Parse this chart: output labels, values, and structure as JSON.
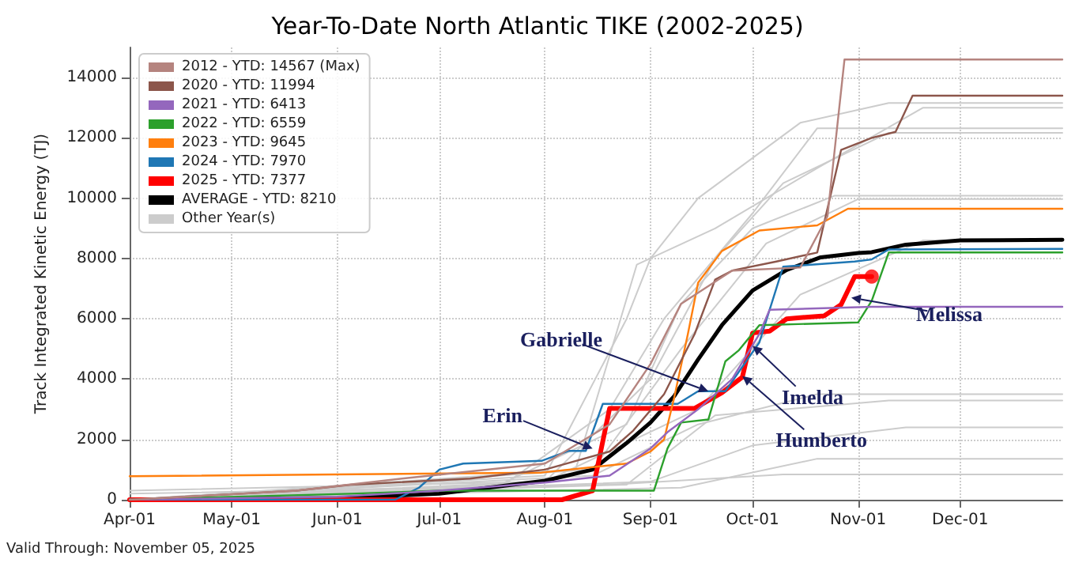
{
  "chart_data": {
    "type": "line",
    "title": "Year-To-Date North Atlantic TIKE (2002-2025)",
    "ylabel": "Track Integrated Kinetic Energy (TJ)",
    "xlim": [
      "--04-01",
      "--12-31"
    ],
    "xticks": [
      {
        "value": "--04-01",
        "label": "Apr-01"
      },
      {
        "value": "--05-01",
        "label": "May-01"
      },
      {
        "value": "--06-01",
        "label": "Jun-01"
      },
      {
        "value": "--07-01",
        "label": "Jul-01"
      },
      {
        "value": "--08-01",
        "label": "Aug-01"
      },
      {
        "value": "--09-01",
        "label": "Sep-01"
      },
      {
        "value": "--10-01",
        "label": "Oct-01"
      },
      {
        "value": "--11-01",
        "label": "Nov-01"
      },
      {
        "value": "--12-01",
        "label": "Dec-01"
      }
    ],
    "ylim": [
      0,
      15000
    ],
    "yticks": [
      0,
      2000,
      4000,
      6000,
      8000,
      10000,
      12000,
      14000
    ],
    "grid": true,
    "legend": "top left",
    "marker": "none",
    "line_style": "solid",
    "annotations": [
      {
        "text": "Erin",
        "x": "--08-15",
        "y": 1700
      },
      {
        "text": "Gabrielle",
        "x": "--09-18",
        "y": 3600
      },
      {
        "text": "Imelda",
        "x": "--10-01",
        "y": 5100
      },
      {
        "text": "Humberto",
        "x": "--09-28",
        "y": 4100
      },
      {
        "text": "Melissa",
        "x": "--10-30",
        "y": 6700
      },
      "Valid Through: November 05, 2025"
    ],
    "series": [
      {
        "name": "2012 - YTD: 14567 (Max)",
        "color": "#b5847f",
        "x": [
          "--04-01",
          "--05-20",
          "--06-20",
          "--08-01",
          "--08-20",
          "--09-01",
          "--09-10",
          "--09-25",
          "--10-15",
          "--10-23",
          "--10-28",
          "--12-31"
        ],
        "values": [
          0,
          300,
          700,
          1200,
          2500,
          4500,
          6500,
          7600,
          7700,
          9400,
          14600,
          14600
        ]
      },
      {
        "name": "2020 - YTD: 11994",
        "color": "#8c564b",
        "x": [
          "--04-01",
          "--05-20",
          "--06-05",
          "--07-10",
          "--08-01",
          "--08-20",
          "--08-27",
          "--09-05",
          "--09-14",
          "--09-20",
          "--09-25",
          "--10-08",
          "--10-20",
          "--10-27",
          "--11-05",
          "--11-12",
          "--11-17",
          "--12-31"
        ],
        "values": [
          0,
          300,
          500,
          700,
          1000,
          1600,
          2300,
          3500,
          5500,
          7300,
          7600,
          7900,
          8200,
          11600,
          12000,
          12200,
          13400,
          13400
        ]
      },
      {
        "name": "2021 - YTD: 6413",
        "color": "#9467bd",
        "x": [
          "--04-01",
          "--06-01",
          "--07-01",
          "--08-01",
          "--08-20",
          "--09-01",
          "--09-06",
          "--09-15",
          "--09-25",
          "--10-03",
          "--10-06",
          "--11-05",
          "--12-31"
        ],
        "values": [
          0,
          100,
          300,
          570,
          800,
          1700,
          2240,
          3000,
          4000,
          5500,
          6300,
          6400,
          6400
        ]
      },
      {
        "name": "2022 - YTD: 6559",
        "color": "#2ca02c",
        "x": [
          "--04-01",
          "--06-05",
          "--07-01",
          "--09-02",
          "--09-06",
          "--09-10",
          "--09-18",
          "--09-23",
          "--09-27",
          "--10-03",
          "--11-01",
          "--11-05",
          "--11-10",
          "--12-31"
        ],
        "values": [
          0,
          200,
          300,
          300,
          1700,
          2560,
          2660,
          4590,
          4960,
          5790,
          5880,
          6600,
          8200,
          8200
        ]
      },
      {
        "name": "2023 - YTD: 9645",
        "color": "#ff7f0e",
        "x": [
          "--04-01",
          "--07-31",
          "--08-25",
          "--09-01",
          "--09-05",
          "--09-08",
          "--09-12",
          "--09-15",
          "--09-22",
          "--10-03",
          "--10-20",
          "--10-29",
          "--12-31"
        ],
        "values": [
          780,
          900,
          1200,
          1600,
          2000,
          3400,
          5500,
          7200,
          8250,
          8930,
          9100,
          9650,
          9650
        ]
      },
      {
        "name": "2024 - YTD: 7970",
        "color": "#1f77b4",
        "x": [
          "--04-01",
          "--06-18",
          "--06-25",
          "--07-01",
          "--07-08",
          "--07-31",
          "--08-08",
          "--08-13",
          "--08-18",
          "--09-09",
          "--09-15",
          "--09-23",
          "--10-03",
          "--10-10",
          "--10-31",
          "--11-05",
          "--11-10",
          "--12-31"
        ],
        "values": [
          0,
          0,
          400,
          1000,
          1200,
          1290,
          1620,
          1620,
          3180,
          3180,
          3600,
          3600,
          5220,
          7730,
          7900,
          7970,
          8300,
          8320
        ]
      },
      {
        "name": "2025 - YTD: 7377",
        "color": "#ff0000",
        "x": [
          "--04-01",
          "--08-06",
          "--08-15",
          "--08-20",
          "--09-14",
          "--09-22",
          "--09-28",
          "--10-01",
          "--10-06",
          "--10-11",
          "--10-22",
          "--10-27",
          "--10-31",
          "--11-05"
        ],
        "values": [
          0,
          0,
          300,
          3030,
          3030,
          3550,
          4070,
          5530,
          5590,
          6000,
          6100,
          6470,
          7400,
          7400
        ]
      },
      {
        "name": "AVERAGE - YTD: 8210",
        "color": "#000000",
        "x": [
          "--04-01",
          "--06-01",
          "--07-01",
          "--08-01",
          "--08-15",
          "--08-25",
          "--09-01",
          "--09-08",
          "--09-15",
          "--09-22",
          "--10-01",
          "--10-11",
          "--10-21",
          "--11-01",
          "--11-05",
          "--11-15",
          "--12-01",
          "--12-31"
        ],
        "values": [
          0,
          50,
          200,
          630,
          1000,
          1880,
          2560,
          3440,
          4650,
          5790,
          6940,
          7620,
          8040,
          8180,
          8210,
          8460,
          8600,
          8620
        ]
      },
      {
        "name": "Other Year(s)",
        "color": "#cccccc",
        "x": [
          "--04-01",
          "--08-01",
          "--08-25",
          "--09-01",
          "--09-15",
          "--10-15",
          "--11-10",
          "--12-31"
        ],
        "values": [
          0,
          800,
          6000,
          8000,
          10000,
          12500,
          13160,
          13160
        ]
      },
      {
        "color": "#cccccc",
        "x": [
          "--04-01",
          "--08-10",
          "--08-28",
          "--09-20",
          "--10-20",
          "--11-20",
          "--12-31"
        ],
        "values": [
          0,
          1000,
          7800,
          9000,
          11000,
          13000,
          13000
        ]
      },
      {
        "color": "#cccccc",
        "x": [
          "--04-01",
          "--07-20",
          "--08-20",
          "--09-05",
          "--10-01",
          "--10-20",
          "--12-31"
        ],
        "values": [
          0,
          500,
          3000,
          6000,
          9500,
          12320,
          12320
        ]
      },
      {
        "color": "#cccccc",
        "x": [
          "--04-01",
          "--08-01",
          "--09-01",
          "--09-20",
          "--10-10",
          "--11-10",
          "--12-31"
        ],
        "values": [
          0,
          600,
          4000,
          8000,
          10500,
          12170,
          12170
        ]
      },
      {
        "color": "#cccccc",
        "x": [
          "--04-01",
          "--07-15",
          "--08-25",
          "--09-10",
          "--10-01",
          "--10-25",
          "--12-31"
        ],
        "values": [
          0,
          300,
          2500,
          6500,
          9000,
          10080,
          10080
        ]
      },
      {
        "color": "#cccccc",
        "x": [
          "--04-01",
          "--08-15",
          "--09-10",
          "--10-05",
          "--11-01",
          "--12-31"
        ],
        "values": [
          0,
          1000,
          5000,
          8500,
          9970,
          9970
        ]
      },
      {
        "color": "#cccccc",
        "x": [
          "--04-01",
          "--08-01",
          "--09-15",
          "--10-15",
          "--11-20",
          "--12-31"
        ],
        "values": [
          300,
          600,
          3000,
          6800,
          8600,
          8600
        ]
      },
      {
        "color": "#cccccc",
        "x": [
          "--04-01",
          "--08-15",
          "--09-15",
          "--10-20",
          "--12-31"
        ],
        "values": [
          0,
          800,
          2500,
          3500,
          3500
        ]
      },
      {
        "color": "#cccccc",
        "x": [
          "--04-01",
          "--08-25",
          "--09-20",
          "--11-10",
          "--12-31"
        ],
        "values": [
          0,
          500,
          2800,
          3290,
          3290
        ]
      },
      {
        "color": "#cccccc",
        "x": [
          "--04-01",
          "--09-01",
          "--10-01",
          "--11-15",
          "--12-31"
        ],
        "values": [
          0,
          600,
          1800,
          2400,
          2400
        ]
      },
      {
        "color": "#cccccc",
        "x": [
          "--04-01",
          "--09-10",
          "--10-20",
          "--12-31"
        ],
        "values": [
          0,
          400,
          1360,
          1360
        ]
      },
      {
        "color": "#cccccc",
        "x": [
          "--04-01",
          "--08-20",
          "--10-10",
          "--12-31"
        ],
        "values": [
          200,
          500,
          840,
          840
        ]
      },
      {
        "type": "scatter",
        "color": "#ff0000",
        "marker": "circle",
        "x": [
          "--11-05"
        ],
        "values": [
          7400
        ]
      }
    ]
  }
}
